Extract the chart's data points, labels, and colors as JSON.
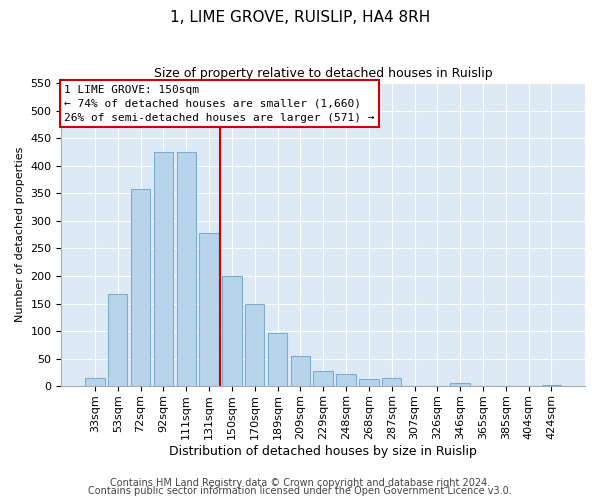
{
  "title": "1, LIME GROVE, RUISLIP, HA4 8RH",
  "subtitle": "Size of property relative to detached houses in Ruislip",
  "xlabel": "Distribution of detached houses by size in Ruislip",
  "ylabel": "Number of detached properties",
  "bar_labels": [
    "33sqm",
    "53sqm",
    "72sqm",
    "92sqm",
    "111sqm",
    "131sqm",
    "150sqm",
    "170sqm",
    "189sqm",
    "209sqm",
    "229sqm",
    "248sqm",
    "268sqm",
    "287sqm",
    "307sqm",
    "326sqm",
    "346sqm",
    "365sqm",
    "385sqm",
    "404sqm",
    "424sqm"
  ],
  "bar_values": [
    15,
    168,
    357,
    425,
    425,
    278,
    200,
    150,
    97,
    55,
    28,
    22,
    13,
    15,
    0,
    0,
    5,
    0,
    0,
    0,
    3
  ],
  "bar_color": "#b8d4ea",
  "bar_edge_color": "#7aaed0",
  "vline_index": 6,
  "vline_color": "#cc0000",
  "ylim": [
    0,
    550
  ],
  "yticks": [
    0,
    50,
    100,
    150,
    200,
    250,
    300,
    350,
    400,
    450,
    500,
    550
  ],
  "annotation_title": "1 LIME GROVE: 150sqm",
  "annotation_line1": "← 74% of detached houses are smaller (1,660)",
  "annotation_line2": "26% of semi-detached houses are larger (571) →",
  "footnote1": "Contains HM Land Registry data © Crown copyright and database right 2024.",
  "footnote2": "Contains public sector information licensed under the Open Government Licence v3.0.",
  "fig_background": "#ffffff",
  "plot_background": "#ddeaf5",
  "grid_color": "#ffffff",
  "title_fontsize": 11,
  "subtitle_fontsize": 9,
  "xlabel_fontsize": 9,
  "ylabel_fontsize": 8,
  "tick_fontsize": 8,
  "footnote_fontsize": 7
}
